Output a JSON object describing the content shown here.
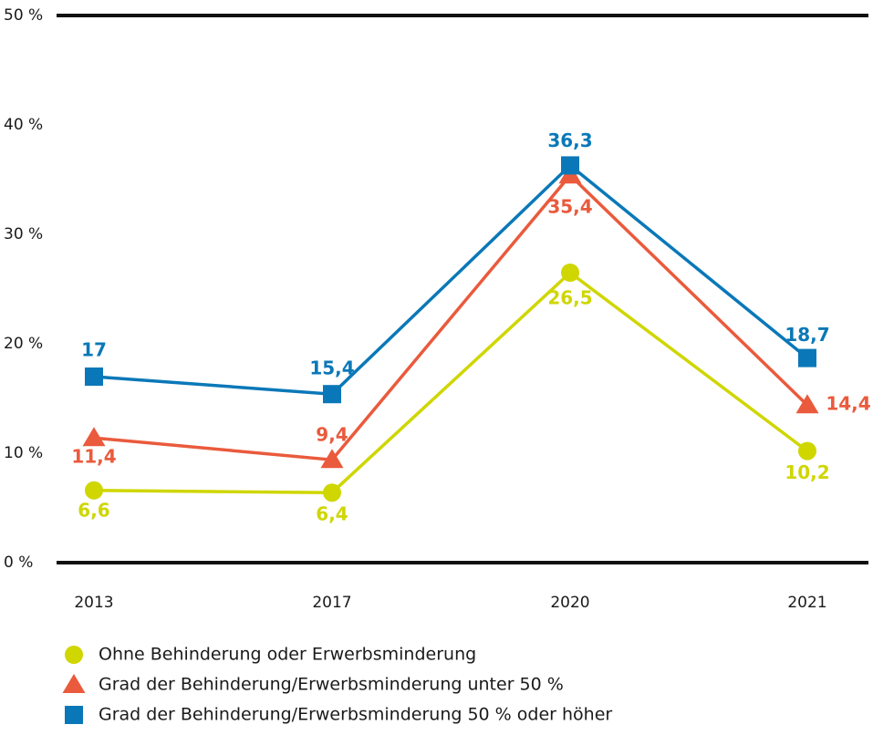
{
  "chart_data": {
    "type": "line",
    "categories": [
      "2013",
      "2017",
      "2020",
      "2021"
    ],
    "series": [
      {
        "name": "Ohne Behinderung oder Erwerbsminderung",
        "color": "#cfd600",
        "marker": "circle",
        "values": [
          6.6,
          6.4,
          26.5,
          10.2
        ],
        "value_labels": [
          "6,6",
          "6,4",
          "26,5",
          "10,2"
        ]
      },
      {
        "name": "Grad der Behinderung/Erwerbsminderung unter 50 %",
        "color": "#ea5a3c",
        "marker": "triangle",
        "values": [
          11.4,
          9.4,
          35.4,
          14.4
        ],
        "value_labels": [
          "11,4",
          "9,4",
          "35,4",
          "14,4"
        ]
      },
      {
        "name": "Grad der Behinderung/Erwerbsminderung 50 % oder höher",
        "color": "#0a78b8",
        "marker": "square",
        "values": [
          17,
          15.4,
          36.3,
          18.7
        ],
        "value_labels": [
          "17",
          "15,4",
          "36,3",
          "18,7"
        ]
      }
    ],
    "ylim": [
      0,
      50
    ],
    "yticks": [
      {
        "value": 0,
        "label": "0 %"
      },
      {
        "value": 10,
        "label": "10 %"
      },
      {
        "value": 20,
        "label": "20 %"
      },
      {
        "value": 30,
        "label": "30 %"
      },
      {
        "value": 40,
        "label": "40 %"
      },
      {
        "value": 50,
        "label": "50 %"
      }
    ],
    "grid": false
  }
}
